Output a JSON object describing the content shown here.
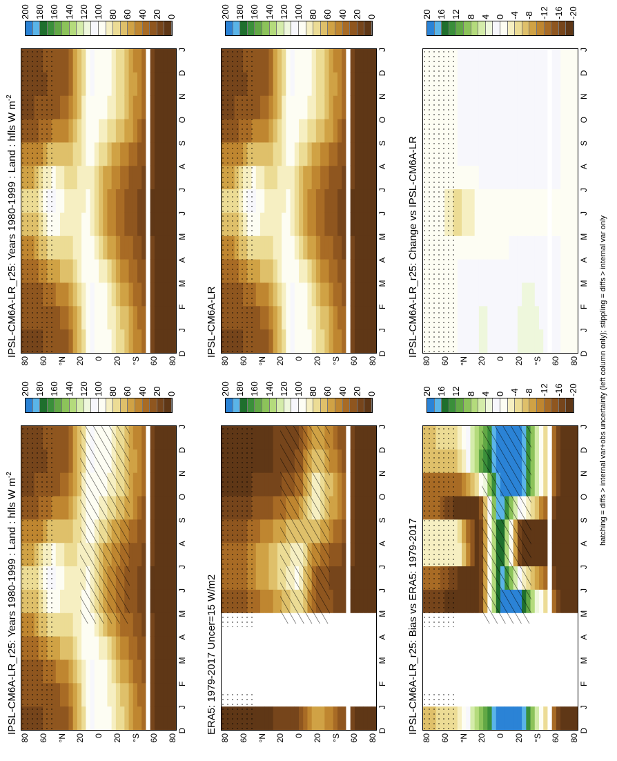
{
  "footnote": "hatching = diffs > internal var+obs uncertainty (left column only); stippling = diffs > internal var only",
  "months": [
    "D",
    "J",
    "F",
    "M",
    "A",
    "M",
    "J",
    "J",
    "A",
    "S",
    "O",
    "N",
    "D",
    "J"
  ],
  "lat_labels": [
    "80",
    "60",
    "°N",
    "20",
    "0",
    "20",
    "°S",
    "60",
    "80"
  ],
  "colorbars": {
    "absolute": {
      "labels": [
        "200",
        "180",
        "160",
        "140",
        "120",
        "100",
        "80",
        "60",
        "40",
        "20",
        "0"
      ],
      "colors": [
        "#2b83d6",
        "#5ab4e8",
        "#1f6f2d",
        "#3a8f3a",
        "#62a845",
        "#8cc35a",
        "#b4db7c",
        "#d4ecaa",
        "#eef7dc",
        "#f7f7fc",
        "#fdfdf3",
        "#f6efc2",
        "#ecdc95",
        "#dfc06a",
        "#d0a245",
        "#bf8630",
        "#a86b25",
        "#8f561f",
        "#76451b",
        "#5f3716"
      ]
    },
    "difference": {
      "labels": [
        "20",
        "16",
        "12",
        "8",
        "4",
        "0",
        "-4",
        "-8",
        "-12",
        "-16",
        "-20"
      ],
      "colors": [
        "#2b83d6",
        "#5ab4e8",
        "#1f6f2d",
        "#3a8f3a",
        "#62a845",
        "#8cc35a",
        "#b4db7c",
        "#d4ecaa",
        "#eef7dc",
        "#f7f7fc",
        "#fdfdf3",
        "#f6efc2",
        "#ecdc95",
        "#dfc06a",
        "#d0a245",
        "#bf8630",
        "#a86b25",
        "#8f561f",
        "#76451b",
        "#5f3716"
      ]
    }
  },
  "panels": [
    {
      "id": "p1",
      "title": "IPSL-CM6A-LR_r25: Years 1980-1999 : Land : hfls W m",
      "title_sup": "-2",
      "kind": "abs",
      "hatch": true,
      "stipple": true,
      "gap": false
    },
    {
      "id": "p2",
      "title": "IPSL-CM6A-LR_r25: Years 1980-1999 : Land : hfls W m",
      "title_sup": "-2",
      "kind": "abs",
      "hatch": false,
      "stipple": true,
      "gap": false
    },
    {
      "id": "p3",
      "title": "ERA5: 1979-2017 Uncer=15 W/m2",
      "title_sup": "",
      "kind": "era",
      "hatch": true,
      "stipple": true,
      "gap": true
    },
    {
      "id": "p4",
      "title": "IPSL-CM6A-LR",
      "title_sup": "",
      "kind": "abs",
      "hatch": false,
      "stipple": true,
      "gap": false
    },
    {
      "id": "p5",
      "title": "IPSL-CM6A-LR_r25: Bias vs ERA5: 1979-2017",
      "title_sup": "",
      "kind": "bias",
      "hatch": true,
      "stipple": true,
      "gap": true
    },
    {
      "id": "p6",
      "title": "IPSL-CM6A-LR_r25: Change vs IPSL-CM6A-LR",
      "title_sup": "",
      "kind": "change",
      "hatch": false,
      "stipple": true,
      "gap": false
    }
  ],
  "chart_data": [
    {
      "type": "heatmap",
      "panel": "p1",
      "title": "IPSL-CM6A-LR_r25: Years 1980-1999 : Land : hfls W m-2",
      "x": "month (D..J)",
      "y": "latitude",
      "ylim": [
        -90,
        90
      ],
      "zlim": [
        0,
        200
      ],
      "rows": [
        {
          "lat": 75,
          "values": [
            18,
            20,
            22,
            28,
            40,
            58,
            72,
            70,
            50,
            32,
            22,
            18,
            18,
            20
          ]
        },
        {
          "lat": 55,
          "values": [
            20,
            22,
            28,
            45,
            70,
            90,
            110,
            105,
            80,
            50,
            30,
            22,
            20,
            22
          ]
        },
        {
          "lat": 35,
          "values": [
            30,
            32,
            40,
            55,
            70,
            80,
            85,
            80,
            70,
            55,
            40,
            32,
            30,
            32
          ]
        },
        {
          "lat": 10,
          "values": [
            100,
            102,
            104,
            105,
            100,
            95,
            92,
            90,
            92,
            96,
            100,
            102,
            100,
            102
          ]
        },
        {
          "lat": -10,
          "values": [
            95,
            95,
            92,
            85,
            70,
            55,
            48,
            50,
            60,
            75,
            90,
            95,
            95,
            95
          ]
        },
        {
          "lat": -30,
          "values": [
            70,
            68,
            60,
            50,
            40,
            32,
            28,
            30,
            38,
            55,
            68,
            72,
            70,
            68
          ]
        },
        {
          "lat": -70,
          "values": [
            5,
            5,
            5,
            5,
            5,
            5,
            5,
            5,
            5,
            5,
            5,
            5,
            5,
            5
          ]
        }
      ]
    },
    {
      "type": "heatmap",
      "panel": "p2",
      "title": "IPSL-CM6A-LR_r25: Years 1980-1999 : Land : hfls W m-2",
      "x": "month (D..J)",
      "y": "latitude",
      "ylim": [
        -90,
        90
      ],
      "zlim": [
        0,
        200
      ],
      "rows": [
        {
          "lat": 75,
          "values": [
            18,
            20,
            22,
            28,
            40,
            58,
            72,
            70,
            50,
            32,
            22,
            18,
            18,
            20
          ]
        },
        {
          "lat": 55,
          "values": [
            20,
            22,
            28,
            45,
            70,
            90,
            110,
            105,
            80,
            50,
            30,
            22,
            20,
            22
          ]
        },
        {
          "lat": 35,
          "values": [
            30,
            32,
            40,
            55,
            70,
            80,
            85,
            80,
            70,
            55,
            40,
            32,
            30,
            32
          ]
        },
        {
          "lat": 10,
          "values": [
            100,
            102,
            104,
            105,
            100,
            95,
            92,
            90,
            92,
            96,
            100,
            102,
            100,
            102
          ]
        },
        {
          "lat": -10,
          "values": [
            95,
            95,
            92,
            85,
            70,
            55,
            48,
            50,
            60,
            75,
            90,
            95,
            95,
            95
          ]
        },
        {
          "lat": -30,
          "values": [
            70,
            68,
            60,
            50,
            40,
            32,
            28,
            30,
            38,
            55,
            68,
            72,
            70,
            68
          ]
        },
        {
          "lat": -70,
          "values": [
            5,
            5,
            5,
            5,
            5,
            5,
            5,
            5,
            5,
            5,
            5,
            5,
            5,
            5
          ]
        }
      ]
    },
    {
      "type": "heatmap",
      "panel": "p3",
      "title": "ERA5: 1979-2017 Uncer=15 W/m2",
      "x": "month (D..J)",
      "y": "latitude",
      "ylim": [
        -90,
        90
      ],
      "zlim": [
        0,
        200
      ],
      "rows": [
        {
          "lat": 70,
          "values": [
            5,
            5,
            null,
            null,
            null,
            20,
            30,
            35,
            30,
            20,
            10,
            5,
            5,
            5
          ]
        },
        {
          "lat": 30,
          "values": [
            10,
            10,
            null,
            null,
            null,
            40,
            60,
            70,
            60,
            40,
            20,
            10,
            10,
            10
          ]
        },
        {
          "lat": 0,
          "values": [
            20,
            20,
            null,
            null,
            null,
            75,
            90,
            95,
            80,
            60,
            40,
            25,
            20,
            20
          ]
        },
        {
          "lat": -20,
          "values": [
            60,
            60,
            null,
            null,
            null,
            35,
            25,
            30,
            55,
            80,
            95,
            85,
            60,
            60
          ]
        },
        {
          "lat": -70,
          "values": [
            5,
            5,
            null,
            null,
            null,
            5,
            5,
            5,
            5,
            5,
            5,
            5,
            5,
            5
          ]
        }
      ]
    },
    {
      "type": "heatmap",
      "panel": "p4",
      "title": "IPSL-CM6A-LR",
      "x": "month (D..J)",
      "y": "latitude",
      "ylim": [
        -90,
        90
      ],
      "zlim": [
        0,
        200
      ],
      "rows": [
        {
          "lat": 75,
          "values": [
            18,
            20,
            22,
            28,
            40,
            58,
            72,
            70,
            50,
            32,
            22,
            18,
            18,
            20
          ]
        },
        {
          "lat": 55,
          "values": [
            20,
            22,
            28,
            45,
            70,
            90,
            110,
            105,
            80,
            50,
            30,
            22,
            20,
            22
          ]
        },
        {
          "lat": 35,
          "values": [
            30,
            32,
            40,
            55,
            70,
            80,
            85,
            80,
            70,
            55,
            40,
            32,
            30,
            32
          ]
        },
        {
          "lat": 10,
          "values": [
            100,
            102,
            104,
            105,
            100,
            95,
            92,
            90,
            92,
            96,
            100,
            102,
            100,
            102
          ]
        },
        {
          "lat": -10,
          "values": [
            95,
            95,
            92,
            85,
            70,
            55,
            48,
            50,
            60,
            75,
            90,
            95,
            95,
            95
          ]
        },
        {
          "lat": -30,
          "values": [
            70,
            68,
            60,
            50,
            40,
            32,
            28,
            30,
            38,
            55,
            68,
            72,
            70,
            68
          ]
        },
        {
          "lat": -70,
          "values": [
            5,
            5,
            5,
            5,
            5,
            5,
            5,
            5,
            5,
            5,
            5,
            5,
            5,
            5
          ]
        }
      ]
    },
    {
      "type": "heatmap",
      "panel": "p5",
      "title": "IPSL-CM6A-LR_r25: Bias vs ERA5: 1979-2017",
      "x": "month (D..J)",
      "y": "latitude",
      "ylim": [
        -90,
        90
      ],
      "zlim": [
        -20,
        20
      ],
      "rows": [
        {
          "lat": 75,
          "values": [
            -6,
            -6,
            null,
            null,
            null,
            -18,
            -16,
            -10,
            4,
            -10,
            -16,
            -8,
            -6,
            -6
          ]
        },
        {
          "lat": 50,
          "values": [
            -4,
            -4,
            null,
            null,
            null,
            -18,
            -20,
            -16,
            12,
            -20,
            -18,
            -10,
            -4,
            -4
          ]
        },
        {
          "lat": 25,
          "values": [
            8,
            8,
            null,
            null,
            null,
            -20,
            -20,
            -20,
            -20,
            -20,
            -16,
            10,
            8,
            8
          ]
        },
        {
          "lat": 0,
          "values": [
            20,
            20,
            null,
            null,
            null,
            20,
            20,
            20,
            20,
            20,
            20,
            20,
            20,
            20
          ]
        },
        {
          "lat": -25,
          "values": [
            20,
            20,
            null,
            null,
            null,
            20,
            16,
            -20,
            -20,
            -20,
            20,
            20,
            20,
            20
          ]
        },
        {
          "lat": -70,
          "values": [
            -20,
            -20,
            null,
            null,
            null,
            -20,
            -20,
            -20,
            -20,
            -20,
            -20,
            -20,
            -20,
            -20
          ]
        }
      ]
    },
    {
      "type": "heatmap",
      "panel": "p6",
      "title": "IPSL-CM6A-LR_r25: Change vs IPSL-CM6A-LR",
      "x": "month (D..J)",
      "y": "latitude",
      "ylim": [
        -90,
        90
      ],
      "zlim": [
        -20,
        20
      ],
      "rows": [
        {
          "lat": 75,
          "values": [
            -1,
            -1,
            0,
            0,
            0,
            0,
            0,
            -1,
            0,
            0,
            0,
            0,
            -1,
            -1
          ]
        },
        {
          "lat": 50,
          "values": [
            0,
            0,
            0,
            0,
            0,
            -4,
            -6,
            -4,
            0,
            0,
            0,
            0,
            0,
            0
          ]
        },
        {
          "lat": 20,
          "values": [
            2,
            3,
            2,
            1,
            0,
            0,
            0,
            0,
            1,
            2,
            1,
            0,
            1,
            2
          ]
        },
        {
          "lat": -10,
          "values": [
            0,
            0,
            0,
            0,
            0,
            0,
            0,
            0,
            0,
            0,
            0,
            0,
            0,
            0
          ]
        },
        {
          "lat": -30,
          "values": [
            4,
            4,
            3,
            2,
            1,
            0,
            0,
            0,
            1,
            2,
            2,
            1,
            1,
            1
          ]
        },
        {
          "lat": -70,
          "values": [
            0,
            0,
            0,
            0,
            0,
            0,
            0,
            0,
            0,
            0,
            0,
            0,
            0,
            0
          ]
        }
      ]
    }
  ]
}
